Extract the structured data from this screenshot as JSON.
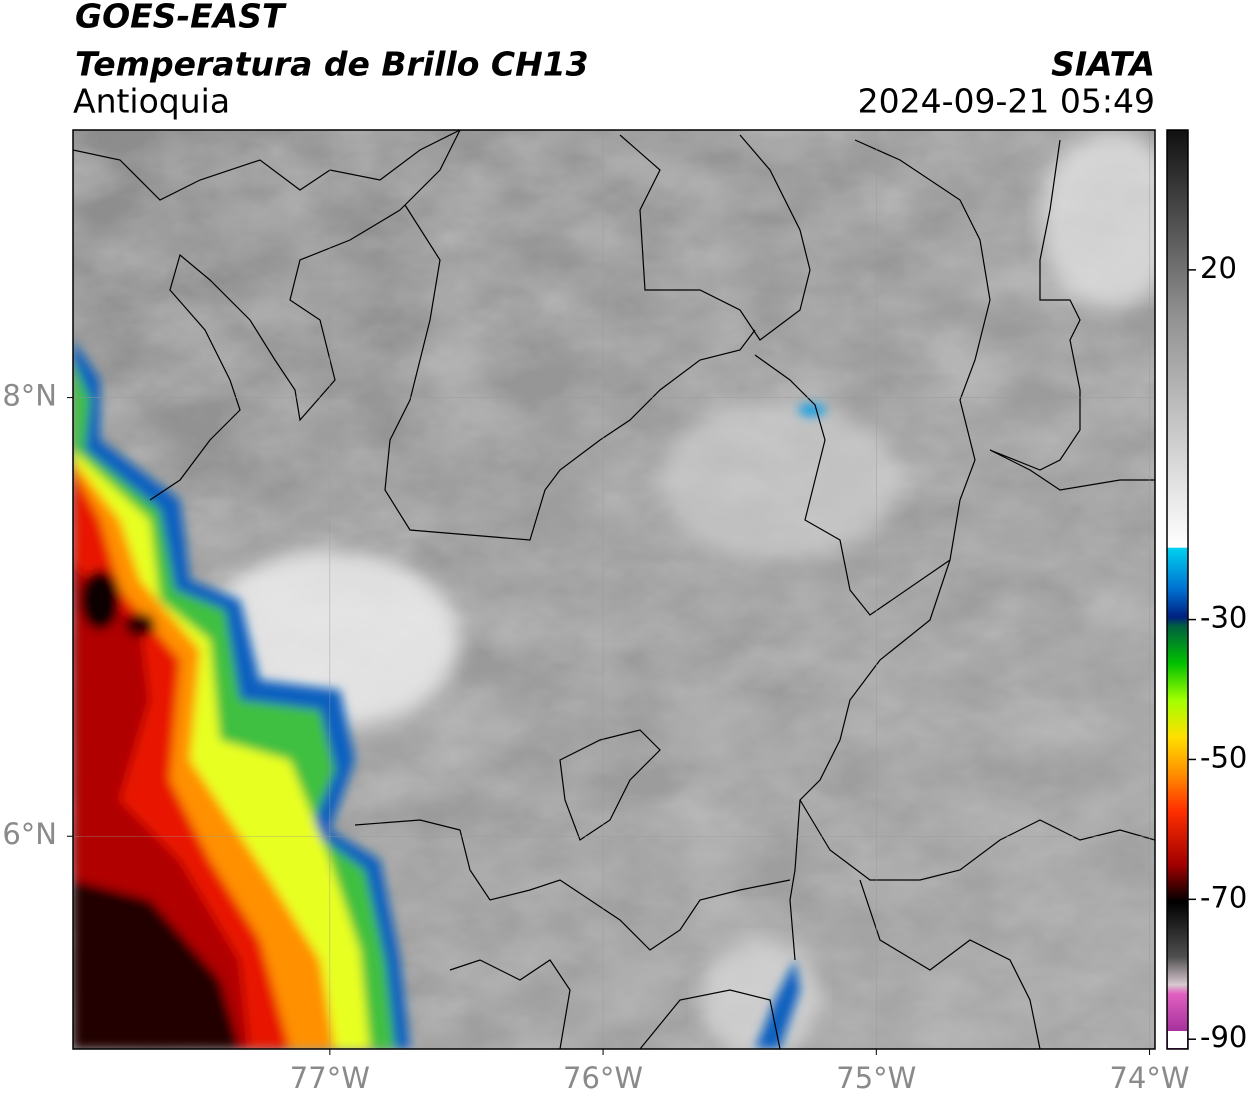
{
  "header": {
    "title": "GOES-EAST",
    "subtitle": "Temperatura de Brillo CH13",
    "region": "Antioquia",
    "source": "SIATA",
    "datetime": "2024-09-21 05:49"
  },
  "map": {
    "xlim": [
      -77.94,
      -73.98
    ],
    "ylim": [
      5.03,
      9.22
    ],
    "xticks": [
      {
        "value": -77,
        "label": "77°W"
      },
      {
        "value": -76,
        "label": "76°W"
      },
      {
        "value": -75,
        "label": "75°W"
      },
      {
        "value": -74,
        "label": "74°W"
      }
    ],
    "yticks": [
      {
        "value": 6,
        "label": "6°N"
      },
      {
        "value": 8,
        "label": "8°N"
      }
    ],
    "grid": true
  },
  "colorbar": {
    "clim": [
      -91.4,
      40
    ],
    "ticks": [
      20,
      -30,
      -50,
      -70,
      -90
    ]
  }
}
